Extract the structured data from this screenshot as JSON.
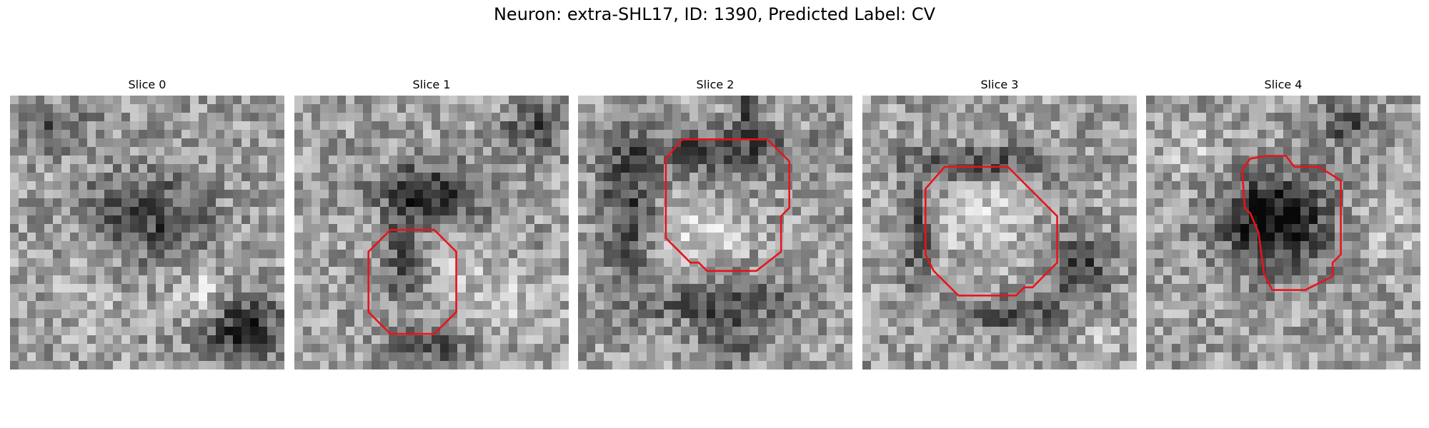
{
  "figure": {
    "title": "Neuron: extra-SHL17, ID: 1390, Predicted Label: CV"
  },
  "panels": [
    {
      "title": "Slice 0",
      "contour": [],
      "dark_blobs": [
        [
          0.55,
          0.45,
          0.18,
          0.16,
          0.35
        ],
        [
          0.85,
          0.85,
          0.14,
          0.12,
          0.45
        ],
        [
          0.15,
          0.12,
          0.15,
          0.08,
          0.25
        ],
        [
          0.35,
          0.4,
          0.1,
          0.1,
          0.15
        ]
      ],
      "light_blobs": [
        [
          0.7,
          0.72,
          0.1,
          0.08,
          0.25
        ],
        [
          0.3,
          0.75,
          0.12,
          0.12,
          0.1
        ]
      ]
    },
    {
      "title": "Slice 1",
      "contour": [
        [
          0.45,
          0.49
        ],
        [
          0.51,
          0.49
        ],
        [
          0.59,
          0.57
        ],
        [
          0.59,
          0.79
        ],
        [
          0.51,
          0.87
        ],
        [
          0.35,
          0.87
        ],
        [
          0.27,
          0.79
        ],
        [
          0.27,
          0.57
        ],
        [
          0.35,
          0.49
        ]
      ],
      "dark_blobs": [
        [
          0.5,
          0.35,
          0.2,
          0.1,
          0.45
        ],
        [
          0.4,
          0.6,
          0.06,
          0.18,
          0.35
        ],
        [
          0.88,
          0.12,
          0.1,
          0.08,
          0.35
        ],
        [
          0.5,
          0.92,
          0.15,
          0.06,
          0.3
        ]
      ],
      "light_blobs": [
        [
          0.6,
          0.65,
          0.1,
          0.15,
          0.15
        ],
        [
          0.85,
          0.75,
          0.12,
          0.12,
          0.15
        ]
      ]
    },
    {
      "title": "Slice 2",
      "contour": [
        [
          0.38,
          0.16
        ],
        [
          0.69,
          0.16
        ],
        [
          0.77,
          0.24
        ],
        [
          0.77,
          0.41
        ],
        [
          0.74,
          0.44
        ],
        [
          0.74,
          0.57
        ],
        [
          0.65,
          0.64
        ],
        [
          0.47,
          0.64
        ],
        [
          0.44,
          0.61
        ],
        [
          0.41,
          0.61
        ],
        [
          0.32,
          0.52
        ],
        [
          0.32,
          0.23
        ]
      ],
      "dark_blobs": [
        [
          0.5,
          0.2,
          0.3,
          0.08,
          0.35
        ],
        [
          0.18,
          0.4,
          0.1,
          0.25,
          0.35
        ],
        [
          0.5,
          0.75,
          0.3,
          0.08,
          0.3
        ],
        [
          0.63,
          0.05,
          0.04,
          0.1,
          0.4
        ],
        [
          0.55,
          0.9,
          0.1,
          0.1,
          0.3
        ]
      ],
      "light_blobs": [
        [
          0.45,
          0.5,
          0.15,
          0.1,
          0.25
        ]
      ]
    },
    {
      "title": "Slice 3",
      "contour": [
        [
          0.3,
          0.26
        ],
        [
          0.53,
          0.26
        ],
        [
          0.71,
          0.44
        ],
        [
          0.71,
          0.61
        ],
        [
          0.62,
          0.7
        ],
        [
          0.59,
          0.7
        ],
        [
          0.56,
          0.73
        ],
        [
          0.35,
          0.73
        ],
        [
          0.26,
          0.64
        ],
        [
          0.23,
          0.58
        ],
        [
          0.23,
          0.34
        ]
      ],
      "dark_blobs": [
        [
          0.45,
          0.25,
          0.25,
          0.06,
          0.35
        ],
        [
          0.78,
          0.62,
          0.12,
          0.12,
          0.35
        ],
        [
          0.2,
          0.5,
          0.06,
          0.2,
          0.3
        ],
        [
          0.55,
          0.8,
          0.2,
          0.06,
          0.3
        ]
      ],
      "light_blobs": [
        [
          0.45,
          0.45,
          0.15,
          0.15,
          0.2
        ],
        [
          0.88,
          0.88,
          0.06,
          0.05,
          0.2
        ]
      ]
    },
    {
      "title": "Slice 4",
      "contour": [
        [
          0.38,
          0.23
        ],
        [
          0.44,
          0.22
        ],
        [
          0.51,
          0.22
        ],
        [
          0.54,
          0.26
        ],
        [
          0.63,
          0.26
        ],
        [
          0.71,
          0.31
        ],
        [
          0.71,
          0.58
        ],
        [
          0.68,
          0.61
        ],
        [
          0.68,
          0.66
        ],
        [
          0.58,
          0.71
        ],
        [
          0.46,
          0.71
        ],
        [
          0.43,
          0.65
        ],
        [
          0.41,
          0.5
        ],
        [
          0.38,
          0.43
        ],
        [
          0.36,
          0.41
        ],
        [
          0.35,
          0.27
        ]
      ],
      "dark_blobs": [
        [
          0.47,
          0.46,
          0.19,
          0.17,
          0.6
        ],
        [
          0.73,
          0.1,
          0.08,
          0.08,
          0.35
        ]
      ],
      "light_blobs": [
        [
          0.15,
          0.2,
          0.1,
          0.1,
          0.15
        ],
        [
          0.9,
          0.45,
          0.08,
          0.15,
          0.15
        ]
      ]
    }
  ],
  "colors": {
    "contour": "#e8141c"
  }
}
